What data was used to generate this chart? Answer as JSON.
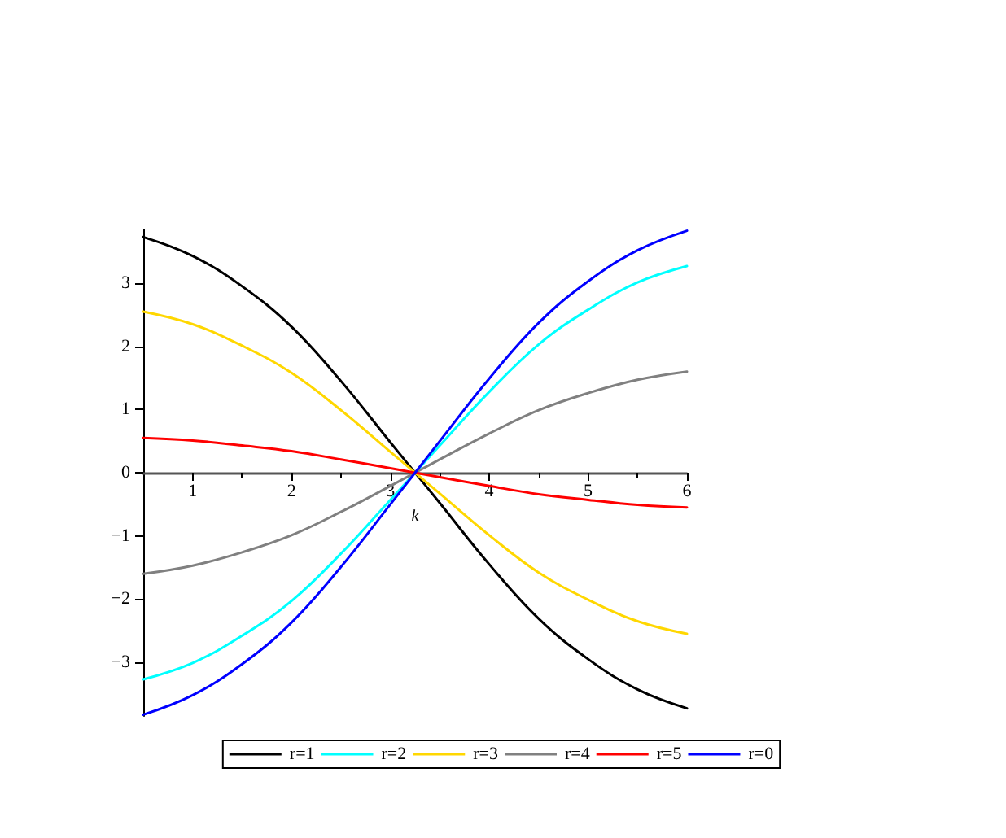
{
  "chart_data": {
    "type": "line",
    "xlabel": "k",
    "x": [
      0.5,
      1,
      1.5,
      2,
      2.5,
      3,
      3.25,
      3.5,
      4,
      4.5,
      5,
      5.5,
      6
    ],
    "series": [
      {
        "name": "r=1",
        "color": "#000000",
        "values": [
          3.73,
          3.43,
          2.95,
          2.31,
          1.45,
          0.48,
          0,
          -0.48,
          -1.45,
          -2.31,
          -2.95,
          -3.43,
          -3.73
        ]
      },
      {
        "name": "r=2",
        "color": "#00ffff",
        "values": [
          -3.27,
          -3.01,
          -2.58,
          -2.03,
          -1.28,
          -0.43,
          0,
          0.43,
          1.28,
          2.03,
          2.58,
          3.01,
          3.27
        ]
      },
      {
        "name": "r=3",
        "color": "#ffd700",
        "values": [
          2.55,
          2.35,
          2.01,
          1.58,
          0.99,
          0.33,
          0,
          -0.33,
          -0.99,
          -1.58,
          -2.01,
          -2.35,
          -2.55
        ]
      },
      {
        "name": "r=4",
        "color": "#808080",
        "values": [
          -1.6,
          -1.47,
          -1.26,
          -0.99,
          -0.62,
          -0.21,
          0,
          0.21,
          0.62,
          0.99,
          1.26,
          1.47,
          1.6
        ]
      },
      {
        "name": "r=5",
        "color": "#ff0000",
        "values": [
          0.55,
          0.51,
          0.43,
          0.34,
          0.21,
          0.07,
          0,
          -0.07,
          -0.21,
          -0.34,
          -0.43,
          -0.51,
          -0.55
        ]
      },
      {
        "name": "r=0",
        "color": "#0000ff",
        "values": [
          -3.83,
          -3.52,
          -3.03,
          -2.37,
          -1.49,
          -0.5,
          0,
          0.5,
          1.49,
          2.37,
          3.03,
          3.52,
          3.83
        ]
      }
    ],
    "xlim": [
      0.5,
      6
    ],
    "xticks": [
      1,
      2,
      3,
      4,
      5,
      6
    ],
    "ylim": [
      -3.85,
      3.85
    ],
    "yticks": [
      -3,
      -2,
      -1,
      0,
      1,
      2,
      3
    ],
    "grid": false,
    "legend": "bottom",
    "marker": "none",
    "line_style": "solid"
  }
}
